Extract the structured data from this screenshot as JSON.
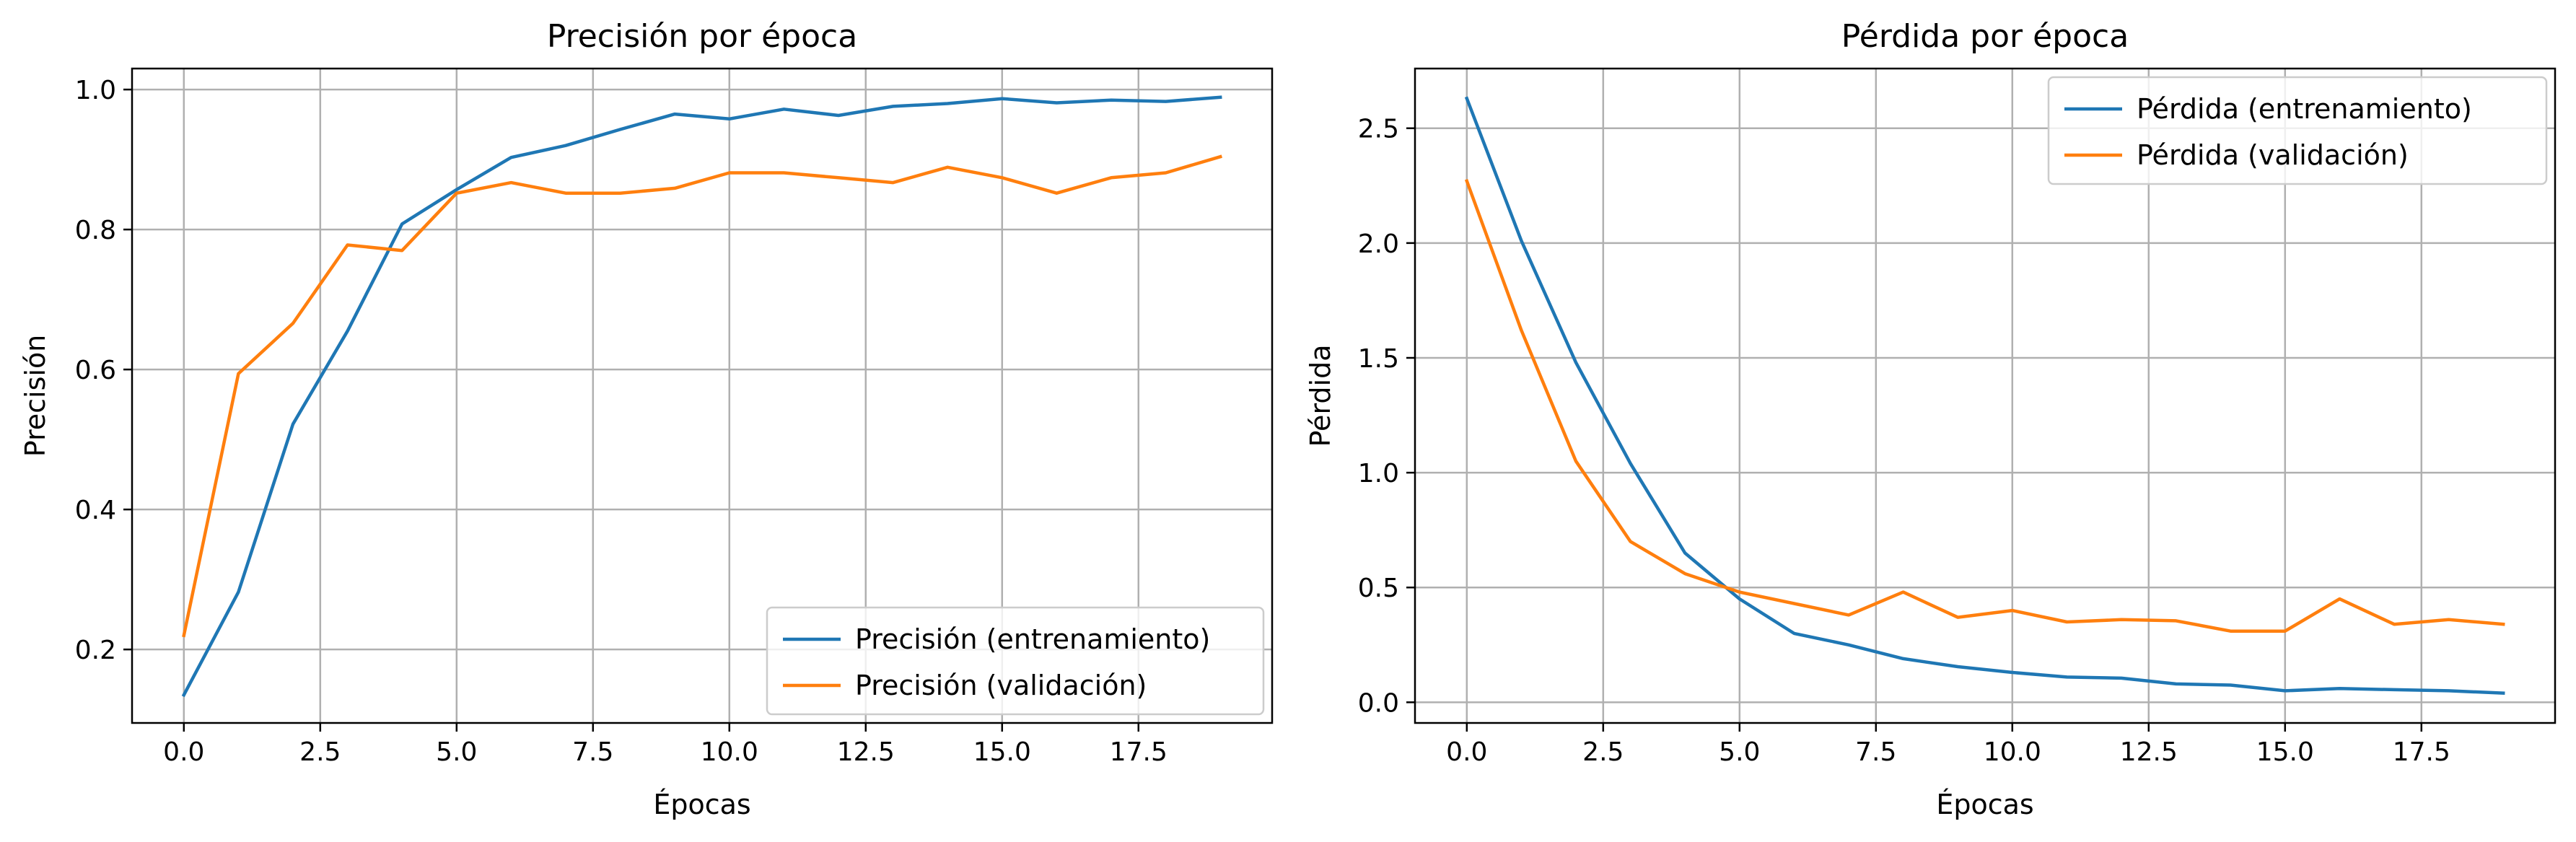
{
  "chart_data": [
    {
      "type": "line",
      "title": "Precisión por época",
      "xlabel": "Épocas",
      "ylabel": "Precisión",
      "xlim": [
        -0.95,
        19.95
      ],
      "ylim": [
        0.095,
        1.03
      ],
      "x_ticks": [
        0.0,
        2.5,
        5.0,
        7.5,
        10.0,
        12.5,
        15.0,
        17.5
      ],
      "x_tick_labels": [
        "0.0",
        "2.5",
        "5.0",
        "7.5",
        "10.0",
        "12.5",
        "15.0",
        "17.5"
      ],
      "y_ticks": [
        0.2,
        0.4,
        0.6,
        0.8,
        1.0
      ],
      "y_tick_labels": [
        "0.2",
        "0.4",
        "0.6",
        "0.8",
        "1.0"
      ],
      "grid": true,
      "legend_position": "lower-right",
      "x": [
        0,
        1,
        2,
        3,
        4,
        5,
        6,
        7,
        8,
        9,
        10,
        11,
        12,
        13,
        14,
        15,
        16,
        17,
        18,
        19
      ],
      "series": [
        {
          "name": "Precisión (entrenamiento)",
          "color": "#1f77b4",
          "values": [
            0.135,
            0.282,
            0.522,
            0.655,
            0.808,
            0.857,
            0.903,
            0.92,
            0.943,
            0.965,
            0.958,
            0.972,
            0.963,
            0.976,
            0.98,
            0.987,
            0.981,
            0.985,
            0.983,
            0.989
          ]
        },
        {
          "name": "Precisión (validación)",
          "color": "#ff7f0e",
          "values": [
            0.22,
            0.594,
            0.666,
            0.778,
            0.77,
            0.852,
            0.867,
            0.852,
            0.852,
            0.859,
            0.881,
            0.881,
            0.874,
            0.867,
            0.889,
            0.874,
            0.852,
            0.874,
            0.881,
            0.904
          ]
        }
      ]
    },
    {
      "type": "line",
      "title": "Pérdida por época",
      "xlabel": "Épocas",
      "ylabel": "Pérdida",
      "xlim": [
        -0.95,
        19.95
      ],
      "ylim": [
        -0.09,
        2.76
      ],
      "x_ticks": [
        0.0,
        2.5,
        5.0,
        7.5,
        10.0,
        12.5,
        15.0,
        17.5
      ],
      "x_tick_labels": [
        "0.0",
        "2.5",
        "5.0",
        "7.5",
        "10.0",
        "12.5",
        "15.0",
        "17.5"
      ],
      "y_ticks": [
        0.0,
        0.5,
        1.0,
        1.5,
        2.0,
        2.5
      ],
      "y_tick_labels": [
        "0.0",
        "0.5",
        "1.0",
        "1.5",
        "2.0",
        "2.5"
      ],
      "grid": true,
      "legend_position": "upper-right",
      "x": [
        0,
        1,
        2,
        3,
        4,
        5,
        6,
        7,
        8,
        9,
        10,
        11,
        12,
        13,
        14,
        15,
        16,
        17,
        18,
        19
      ],
      "series": [
        {
          "name": "Pérdida (entrenamiento)",
          "color": "#1f77b4",
          "values": [
            2.63,
            2.01,
            1.48,
            1.04,
            0.65,
            0.45,
            0.3,
            0.25,
            0.19,
            0.155,
            0.13,
            0.11,
            0.105,
            0.08,
            0.075,
            0.05,
            0.06,
            0.055,
            0.05,
            0.04
          ]
        },
        {
          "name": "Pérdida (validación)",
          "color": "#ff7f0e",
          "values": [
            2.27,
            1.62,
            1.05,
            0.7,
            0.56,
            0.48,
            0.43,
            0.38,
            0.48,
            0.37,
            0.4,
            0.35,
            0.36,
            0.355,
            0.31,
            0.31,
            0.45,
            0.34,
            0.36,
            0.34
          ]
        }
      ]
    }
  ]
}
